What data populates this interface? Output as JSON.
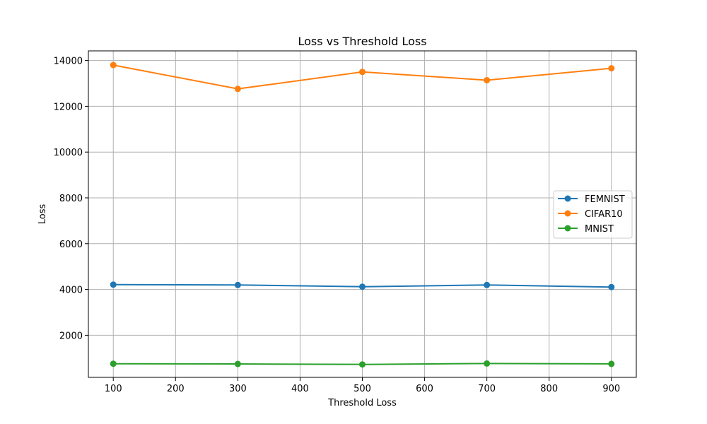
{
  "chart_data": {
    "type": "line",
    "title": "Loss vs Threshold Loss",
    "xlabel": "Threshold Loss",
    "ylabel": "Loss",
    "x": [
      100,
      300,
      500,
      700,
      900
    ],
    "xlim": [
      60,
      940
    ],
    "ylim": [
      160,
      14420
    ],
    "xticks": [
      100,
      200,
      300,
      400,
      500,
      600,
      700,
      800,
      900
    ],
    "yticks": [
      2000,
      4000,
      6000,
      8000,
      10000,
      12000,
      14000
    ],
    "grid": true,
    "legend_position": "center-right",
    "series": [
      {
        "name": "FEMNIST",
        "color": "#1f77b4",
        "values": [
          4210,
          4195,
          4120,
          4195,
          4105
        ]
      },
      {
        "name": "CIFAR10",
        "color": "#ff7f0e",
        "values": [
          13800,
          12760,
          13500,
          13140,
          13660
        ]
      },
      {
        "name": "MNIST",
        "color": "#2ca02c",
        "values": [
          755,
          745,
          725,
          765,
          750
        ]
      }
    ]
  }
}
